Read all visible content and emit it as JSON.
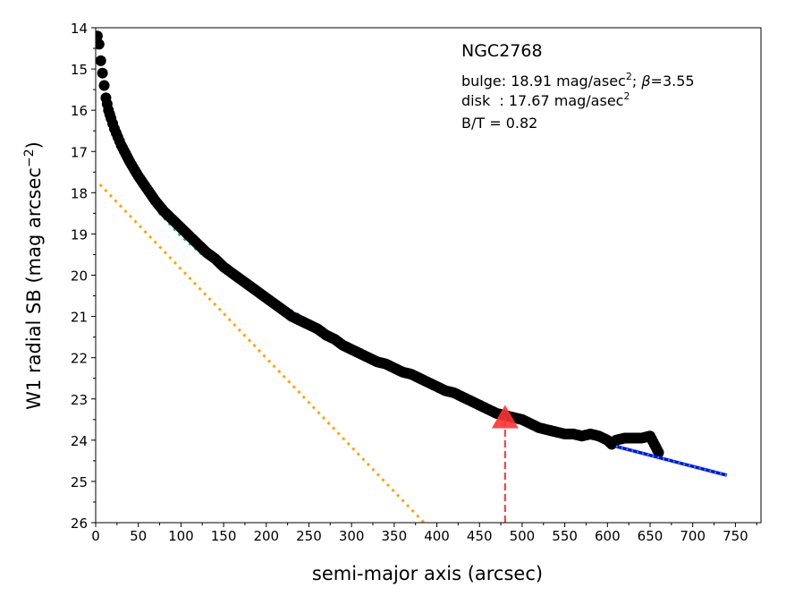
{
  "chart_data": {
    "type": "scatter",
    "xlabel": "semi-major axis (arcsec)",
    "ylabel": "W1 radial SB (mag arcsec",
    "ylabel_sup": "−2",
    "ylabel_end": ")",
    "xlim": [
      0,
      780
    ],
    "ylim": [
      26,
      14
    ],
    "y_inverted": true,
    "grid": false,
    "xticks": [
      0,
      50,
      100,
      150,
      200,
      250,
      300,
      350,
      400,
      450,
      500,
      550,
      600,
      650,
      700,
      750
    ],
    "yticks": [
      14,
      15,
      16,
      17,
      18,
      19,
      20,
      21,
      22,
      23,
      24,
      25,
      26
    ],
    "annotations": {
      "galaxy": "NGC2768",
      "bulge_prefix": "bulge: 18.91 mag/asec",
      "bulge_sup": "2",
      "bulge_suffix": "; ",
      "beta_symbol": "β",
      "beta_value": "=3.55",
      "disk_prefix": "disk  : 17.67 mag/asec",
      "disk_sup": "2",
      "bt": "B/T = 0.82"
    },
    "profile": {
      "color": "#000000",
      "x": [
        2,
        4,
        6,
        8,
        10,
        12,
        15,
        18,
        22,
        26,
        30,
        35,
        40,
        50,
        60,
        70,
        80,
        90,
        100,
        110,
        120,
        130,
        140,
        150,
        160,
        170,
        180,
        190,
        200,
        210,
        220,
        230,
        240,
        250,
        260,
        270,
        280,
        290,
        300,
        310,
        320,
        330,
        340,
        350,
        360,
        370,
        380,
        390,
        400,
        410,
        420,
        430,
        440,
        450,
        460,
        470,
        480,
        490,
        500,
        510,
        520,
        530,
        540,
        550,
        560,
        570,
        580,
        590,
        600,
        605,
        610,
        620,
        630,
        640,
        650,
        655,
        660
      ],
      "y": [
        14.2,
        14.4,
        14.8,
        15.1,
        15.4,
        15.7,
        16.0,
        16.2,
        16.45,
        16.65,
        16.85,
        17.05,
        17.25,
        17.6,
        17.9,
        18.2,
        18.45,
        18.65,
        18.85,
        19.05,
        19.25,
        19.45,
        19.6,
        19.8,
        19.95,
        20.1,
        20.25,
        20.4,
        20.55,
        20.7,
        20.85,
        21.0,
        21.1,
        21.2,
        21.3,
        21.45,
        21.55,
        21.7,
        21.8,
        21.9,
        22.0,
        22.1,
        22.15,
        22.25,
        22.35,
        22.4,
        22.5,
        22.6,
        22.7,
        22.8,
        22.85,
        22.95,
        23.05,
        23.15,
        23.25,
        23.35,
        23.4,
        23.45,
        23.5,
        23.6,
        23.7,
        23.75,
        23.8,
        23.85,
        23.85,
        23.9,
        23.85,
        23.9,
        24.0,
        24.1,
        24.0,
        23.95,
        23.95,
        23.95,
        23.9,
        24.1,
        24.3
      ]
    },
    "bulge_model": {
      "color": "#00bfbf",
      "x": [
        35,
        50,
        75,
        100,
        125,
        150,
        175,
        200,
        225,
        250,
        270
      ],
      "y": [
        17.15,
        17.75,
        18.5,
        19.05,
        19.5,
        19.85,
        20.2,
        20.5,
        20.8,
        21.1,
        21.35
      ]
    },
    "disk_model": {
      "color": "#ffa500",
      "x": [
        5,
        385
      ],
      "y": [
        17.8,
        26.0
      ]
    },
    "outer_fit": {
      "color": "#0000ff",
      "overlay_color": "#00bfbf",
      "x": [
        610,
        740
      ],
      "y": [
        24.15,
        24.85
      ]
    },
    "marker": {
      "color": "#ff3333",
      "x": 480,
      "y": 23.45,
      "line_from_y": 26.0
    }
  }
}
